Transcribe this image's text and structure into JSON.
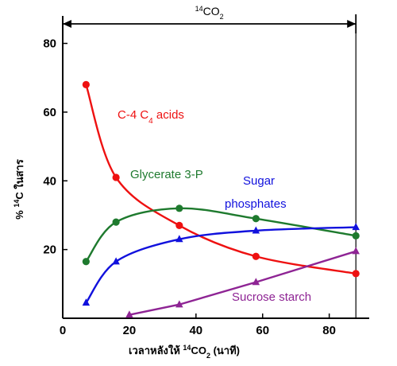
{
  "chart_data": {
    "type": "line",
    "title": "",
    "xlabel": "เวลาหลังให้ ¹⁴CO₂ (นาที)",
    "xlabel_parts": {
      "prefix": "เวลาหลังให้ ",
      "sup": "14",
      "mid": "CO",
      "sub": "2",
      "suffix": " (นาที)"
    },
    "ylabel": "% ¹⁴C ในสาร",
    "ylabel_parts": {
      "prefix": "% ",
      "sup": "14",
      "mid": "C ในสาร"
    },
    "xlim": [
      0,
      92
    ],
    "ylim": [
      0,
      88
    ],
    "x_ticks": [
      0,
      20,
      40,
      60,
      80
    ],
    "y_ticks": [
      20,
      40,
      60,
      80
    ],
    "grid": false,
    "annotation": {
      "text": "14CO2",
      "parts": {
        "sup": "14",
        "mid": "CO",
        "sub": "2"
      },
      "span": [
        0,
        88
      ]
    },
    "series": [
      {
        "key": "c4",
        "name": "C-4 C4 acids",
        "name_parts": {
          "prefix": "C-4 C",
          "sub": "4",
          "suffix": " acids"
        },
        "color": "#ee1111",
        "marker": "circle",
        "x": [
          7,
          16,
          35,
          58,
          88
        ],
        "y": [
          68,
          41,
          27,
          18,
          13
        ]
      },
      {
        "key": "glycerate",
        "name": "Glycerate 3-P",
        "color": "#1e7a2e",
        "marker": "circle",
        "x": [
          7,
          16,
          35,
          58,
          88
        ],
        "y": [
          16.5,
          28,
          32,
          29,
          24
        ]
      },
      {
        "key": "sugar",
        "name": "Sugar phosphates",
        "name_lines": [
          "Sugar",
          "phosphates"
        ],
        "color": "#1111dd",
        "marker": "triangle",
        "x": [
          7,
          16,
          35,
          58,
          88
        ],
        "y": [
          4.5,
          16.5,
          23,
          25.5,
          26.5
        ]
      },
      {
        "key": "sucrose",
        "name": "Sucrose starch",
        "color": "#8e2494",
        "marker": "triangle",
        "x": [
          20,
          35,
          58,
          88
        ],
        "y": [
          1,
          4,
          10.5,
          19.5
        ]
      }
    ]
  }
}
